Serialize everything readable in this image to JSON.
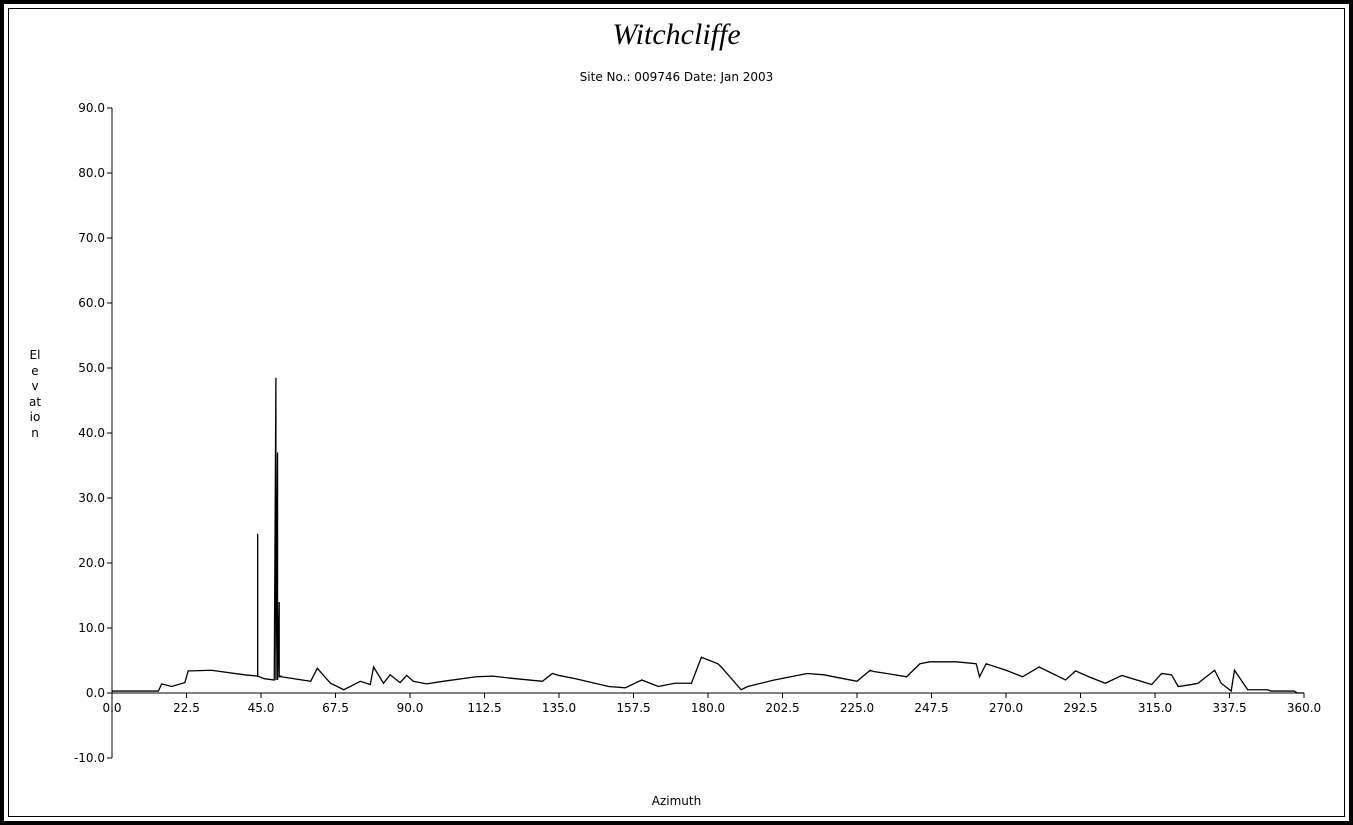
{
  "chart_data": {
    "type": "line",
    "title": "Witchcliffe",
    "subtitle": "Site No.: 009746 Date: Jan 2003",
    "xlabel": "Azimuth",
    "ylabel": "Elevation",
    "xlim": [
      0,
      360
    ],
    "ylim": [
      -10,
      90
    ],
    "x_ticks": [
      "0.0",
      "22.5",
      "45.0",
      "67.5",
      "90.0",
      "112.5",
      "135.0",
      "157.5",
      "180.0",
      "202.5",
      "225.0",
      "247.5",
      "270.0",
      "292.5",
      "315.0",
      "337.5",
      "360.0"
    ],
    "y_ticks": [
      "90.0",
      "80.0",
      "70.0",
      "60.0",
      "50.0",
      "40.0",
      "30.0",
      "20.0",
      "10.0",
      "0.0",
      "-10.0"
    ],
    "grid": false,
    "legend": "none",
    "x": [
      0,
      14,
      15,
      18,
      22,
      23,
      24,
      30,
      40,
      44,
      44,
      44,
      46,
      49,
      49.5,
      49.5,
      50,
      50,
      50.5,
      50.5,
      51,
      51,
      60,
      62,
      66,
      70,
      75,
      78,
      79,
      82,
      84,
      87,
      89,
      91,
      95,
      100,
      110,
      115,
      120,
      130,
      133,
      135,
      140,
      150,
      155,
      160,
      165,
      170,
      175,
      178,
      178,
      183,
      184,
      190,
      192,
      200,
      210,
      215,
      220,
      225,
      229,
      230,
      234,
      240,
      244,
      247,
      250,
      255,
      261,
      262,
      264,
      270,
      275,
      280,
      288,
      291,
      295,
      300,
      305,
      314,
      317,
      320,
      322,
      326,
      328,
      333,
      335,
      338,
      339,
      343,
      346,
      349,
      350,
      357,
      358,
      360
    ],
    "y": [
      0.3,
      0.3,
      1.4,
      1.0,
      1.6,
      3.4,
      3.4,
      3.5,
      2.8,
      2.6,
      24.5,
      2.6,
      2.2,
      2.0,
      48.5,
      2.0,
      37.0,
      2.0,
      14.0,
      2.5,
      2.6,
      2.5,
      1.8,
      3.8,
      1.5,
      0.5,
      1.8,
      1.3,
      4.0,
      1.5,
      2.8,
      1.6,
      2.7,
      1.8,
      1.4,
      1.8,
      2.5,
      2.6,
      2.3,
      1.8,
      3.0,
      2.7,
      2.2,
      1.0,
      0.8,
      2.0,
      1.0,
      1.5,
      1.5,
      5.5,
      5.5,
      4.5,
      4.0,
      0.5,
      1.0,
      2.0,
      3.0,
      2.8,
      2.3,
      1.8,
      3.5,
      3.3,
      3.0,
      2.5,
      4.5,
      4.8,
      4.8,
      4.8,
      4.5,
      2.5,
      4.5,
      3.5,
      2.5,
      4.0,
      2.0,
      3.4,
      2.5,
      1.5,
      2.7,
      1.3,
      3.0,
      2.8,
      1.0,
      1.3,
      1.5,
      3.5,
      1.5,
      0.3,
      3.5,
      0.5,
      0.5,
      0.5,
      0.3,
      0.3,
      0.0,
      0.0
    ]
  }
}
